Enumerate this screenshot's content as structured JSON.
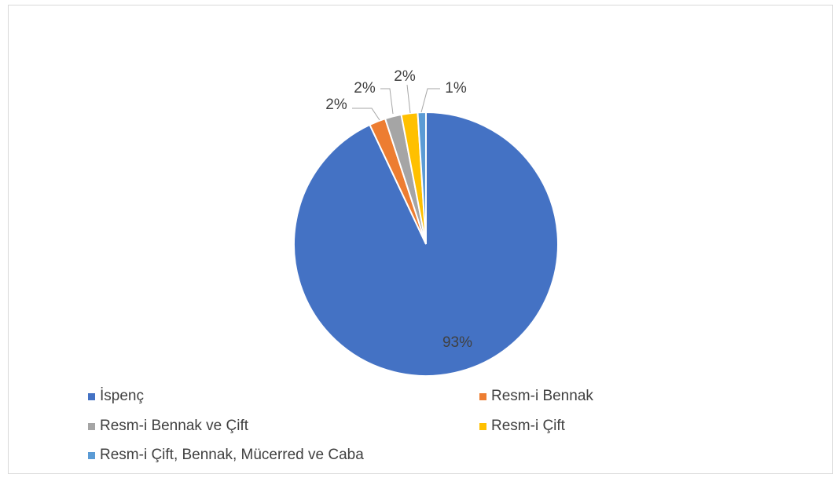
{
  "chart_data": {
    "type": "pie",
    "categories": [
      "İspenç",
      "Resm-i Bennak",
      "Resm-i Bennak ve Çift",
      "Resm-i Çift",
      "Resm-i Çift, Bennak, Mücerred ve Caba"
    ],
    "values": [
      93,
      2,
      2,
      2,
      1
    ],
    "value_labels": [
      "93%",
      "2%",
      "2%",
      "2%",
      "1%"
    ],
    "colors": [
      "#4472c4",
      "#ed7d31",
      "#a5a5a5",
      "#ffc000",
      "#5b9bd5"
    ],
    "legend_position": "bottom",
    "title": ""
  }
}
